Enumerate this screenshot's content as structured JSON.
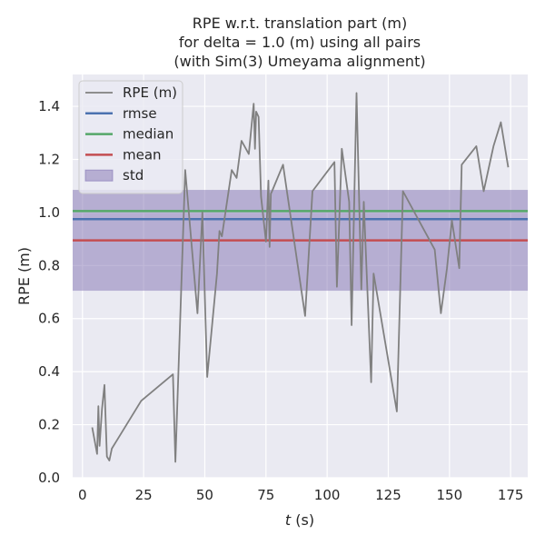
{
  "chart_data": {
    "type": "line",
    "title_lines": [
      "RPE w.r.t. translation part (m)",
      "for delta = 1.0 (m) using all pairs",
      "(with Sim(3) Umeyama alignment)"
    ],
    "xlabel_var": "t",
    "xlabel_unit": " (s)",
    "ylabel": "RPE (m)",
    "xlim": [
      -4,
      182
    ],
    "ylim": [
      0,
      1.52
    ],
    "x_ticks": [
      0,
      25,
      50,
      75,
      100,
      125,
      150,
      175
    ],
    "y_ticks": [
      0.0,
      0.2,
      0.4,
      0.6,
      0.8,
      1.0,
      1.2,
      1.4
    ],
    "x_tick_labels": [
      "0",
      "25",
      "50",
      "75",
      "100",
      "125",
      "150",
      "175"
    ],
    "y_tick_labels": [
      "0.0",
      "0.2",
      "0.4",
      "0.6",
      "0.8",
      "1.0",
      "1.2",
      "1.4"
    ],
    "grid": true,
    "legend_position": "top-left",
    "colors": {
      "background": "#eaeaf2",
      "grid": "#ffffff",
      "rpe": "#808080",
      "rmse": "#4c72b0",
      "median": "#55a868",
      "mean": "#c44e52",
      "std": "#8172b2"
    },
    "stats": {
      "rmse": 0.975,
      "median": 1.005,
      "mean": 0.895,
      "std_low": 0.705,
      "std_high": 1.085
    },
    "legend": [
      {
        "label": "RPE (m)",
        "kind": "line",
        "color_key": "rpe"
      },
      {
        "label": "rmse",
        "kind": "line",
        "color_key": "rmse"
      },
      {
        "label": "median",
        "kind": "line",
        "color_key": "median"
      },
      {
        "label": "mean",
        "kind": "line",
        "color_key": "mean"
      },
      {
        "label": "std",
        "kind": "patch",
        "color_key": "std"
      }
    ],
    "series": [
      {
        "name": "RPE (m)",
        "x": [
          4,
          6,
          6.5,
          7,
          8,
          9,
          10,
          11,
          12,
          24,
          37,
          38,
          42,
          47,
          49,
          51,
          55,
          56,
          57,
          61,
          63,
          65,
          68,
          70,
          70.5,
          71,
          72,
          73,
          75,
          76,
          76.5,
          77,
          77.5,
          82,
          91,
          94,
          103,
          104,
          106,
          109,
          110,
          112,
          114,
          115,
          118,
          119,
          128.5,
          131,
          144,
          146.5,
          149,
          151,
          154,
          155,
          161,
          164,
          168,
          171,
          174
        ],
        "y": [
          0.19,
          0.09,
          0.27,
          0.12,
          0.26,
          0.35,
          0.08,
          0.065,
          0.11,
          0.29,
          0.39,
          0.06,
          1.16,
          0.62,
          1.0,
          0.38,
          0.77,
          0.93,
          0.91,
          1.16,
          1.13,
          1.27,
          1.22,
          1.41,
          1.24,
          1.38,
          1.36,
          1.06,
          0.89,
          1.12,
          0.87,
          1.07,
          1.08,
          1.18,
          0.61,
          1.08,
          1.19,
          0.72,
          1.24,
          1.04,
          0.575,
          1.45,
          0.71,
          1.04,
          0.36,
          0.77,
          0.25,
          1.08,
          0.86,
          0.62,
          0.79,
          0.97,
          0.79,
          1.18,
          1.25,
          1.08,
          1.25,
          1.34,
          1.17
        ]
      }
    ]
  }
}
